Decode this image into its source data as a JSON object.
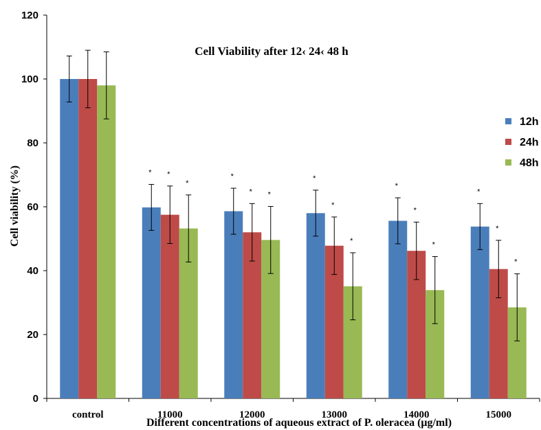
{
  "chart_data": {
    "type": "bar",
    "title": "Cell Viability  after 12‹ 24‹ 48 h",
    "xlabel": "Different  concentrations  of aqueous extract of P. oleracea (μg/ml)",
    "ylabel": "Cell viability  (%)",
    "ylim": [
      0,
      120
    ],
    "yticks": [
      0,
      20,
      40,
      60,
      80,
      100,
      120
    ],
    "grid": false,
    "legend_position": "right",
    "significance_marker": "*",
    "categories": [
      "control",
      "11000",
      "12000",
      "13000",
      "14000",
      "15000"
    ],
    "series": [
      {
        "name": "12h",
        "color": "#4a7ebb",
        "values": [
          100,
          59.8,
          58.6,
          58.0,
          55.6,
          53.8
        ],
        "errors": [
          7.2,
          7.2,
          7.2,
          7.2,
          7.2,
          7.2
        ],
        "significant": [
          false,
          true,
          true,
          true,
          true,
          true
        ]
      },
      {
        "name": "24h",
        "color": "#be4b48",
        "values": [
          100,
          57.5,
          52.0,
          47.8,
          46.2,
          40.5
        ],
        "errors": [
          9.0,
          9.0,
          9.0,
          9.0,
          9.0,
          9.0
        ],
        "significant": [
          false,
          true,
          true,
          true,
          true,
          true
        ]
      },
      {
        "name": "48h",
        "color": "#98b954",
        "values": [
          98,
          53.2,
          49.6,
          35.1,
          33.9,
          28.5
        ],
        "errors": [
          10.5,
          10.5,
          10.5,
          10.5,
          10.5,
          10.5
        ],
        "significant": [
          false,
          true,
          true,
          true,
          true,
          true
        ]
      }
    ]
  }
}
